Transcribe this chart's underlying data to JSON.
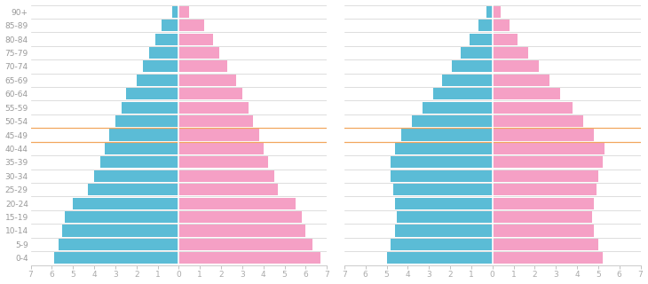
{
  "age_groups": [
    "0-4",
    "5-9",
    "10-14",
    "15-19",
    "20-24",
    "25-29",
    "30-34",
    "35-39",
    "40-44",
    "45-49",
    "50-54",
    "55-59",
    "60-64",
    "65-69",
    "70-74",
    "75-79",
    "80-84",
    "85-89",
    "90+"
  ],
  "pyramid1_male": [
    5.9,
    5.7,
    5.5,
    5.4,
    5.0,
    4.3,
    4.0,
    3.7,
    3.5,
    3.3,
    3.0,
    2.7,
    2.5,
    2.0,
    1.7,
    1.4,
    1.1,
    0.8,
    0.3
  ],
  "pyramid1_female": [
    6.7,
    6.3,
    6.0,
    5.8,
    5.5,
    4.7,
    4.5,
    4.2,
    4.0,
    3.8,
    3.5,
    3.3,
    3.0,
    2.7,
    2.3,
    1.9,
    1.6,
    1.2,
    0.5
  ],
  "pyramid2_male": [
    5.0,
    4.8,
    4.6,
    4.5,
    4.6,
    4.7,
    4.8,
    4.8,
    4.6,
    4.3,
    3.8,
    3.3,
    2.8,
    2.4,
    1.9,
    1.5,
    1.1,
    0.65,
    0.3
  ],
  "pyramid2_female": [
    5.2,
    5.0,
    4.8,
    4.7,
    4.8,
    4.9,
    5.0,
    5.2,
    5.3,
    4.8,
    4.3,
    3.8,
    3.2,
    2.7,
    2.2,
    1.7,
    1.2,
    0.8,
    0.4
  ],
  "male_color": "#5bbcd6",
  "female_color": "#f5a0c5",
  "bg_color": "#ffffff",
  "grid_color": "#d0d0d0",
  "tick_color": "#aaaaaa",
  "label_color": "#999999",
  "median_line_color": "#f5a050",
  "median_lines": [
    8.5,
    9.5
  ],
  "xlim": 7,
  "bar_height": 0.85
}
